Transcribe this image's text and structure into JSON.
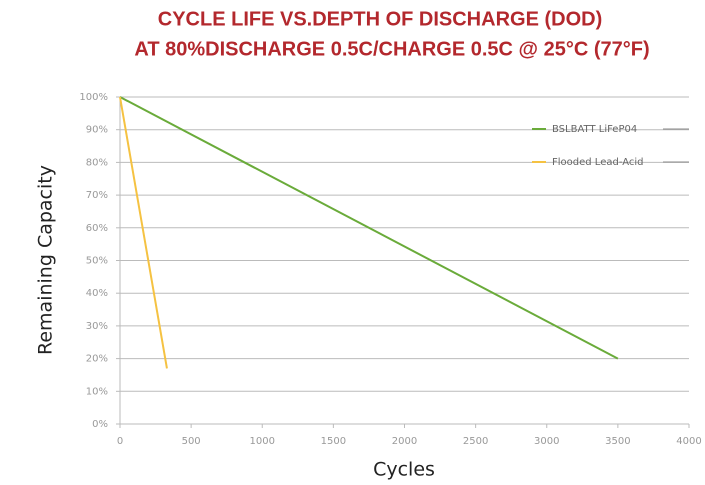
{
  "chart_data": {
    "type": "line",
    "title": "CYCLE LIFE VS.DEPTH OF DISCHARGE (DOD)",
    "subtitle": "AT 80%DISCHARGE 0.5C/CHARGE 0.5C @ 25°C (77°F)",
    "xlabel": "Cycles",
    "ylabel": "Remaining Capacity",
    "xlim": [
      0,
      4000
    ],
    "xticks": [
      0,
      500,
      1000,
      1500,
      2000,
      2500,
      3000,
      3500,
      4000
    ],
    "ylim": [
      0,
      100
    ],
    "yticks": [
      {
        "value": 0,
        "label": "0%"
      },
      {
        "value": 10,
        "label": "10%"
      },
      {
        "value": 20,
        "label": "20%"
      },
      {
        "value": 30,
        "label": "30%"
      },
      {
        "value": 40,
        "label": "40%"
      },
      {
        "value": 50,
        "label": "50%"
      },
      {
        "value": 60,
        "label": "60%"
      },
      {
        "value": 70,
        "label": "70%"
      },
      {
        "value": 80,
        "label": "80%"
      },
      {
        "value": 90,
        "label": "90%"
      },
      {
        "value": 100,
        "label": "100%"
      }
    ],
    "grid": true,
    "legend": "upper right",
    "series": [
      {
        "name": "BSLBATT LiFeP04",
        "color": "#6aab3a",
        "x": [
          0,
          3500
        ],
        "values": [
          100,
          20
        ]
      },
      {
        "name": "Flooded Lead-Acid",
        "color": "#f5c242",
        "x": [
          0,
          330
        ],
        "values": [
          100,
          17
        ]
      }
    ]
  }
}
